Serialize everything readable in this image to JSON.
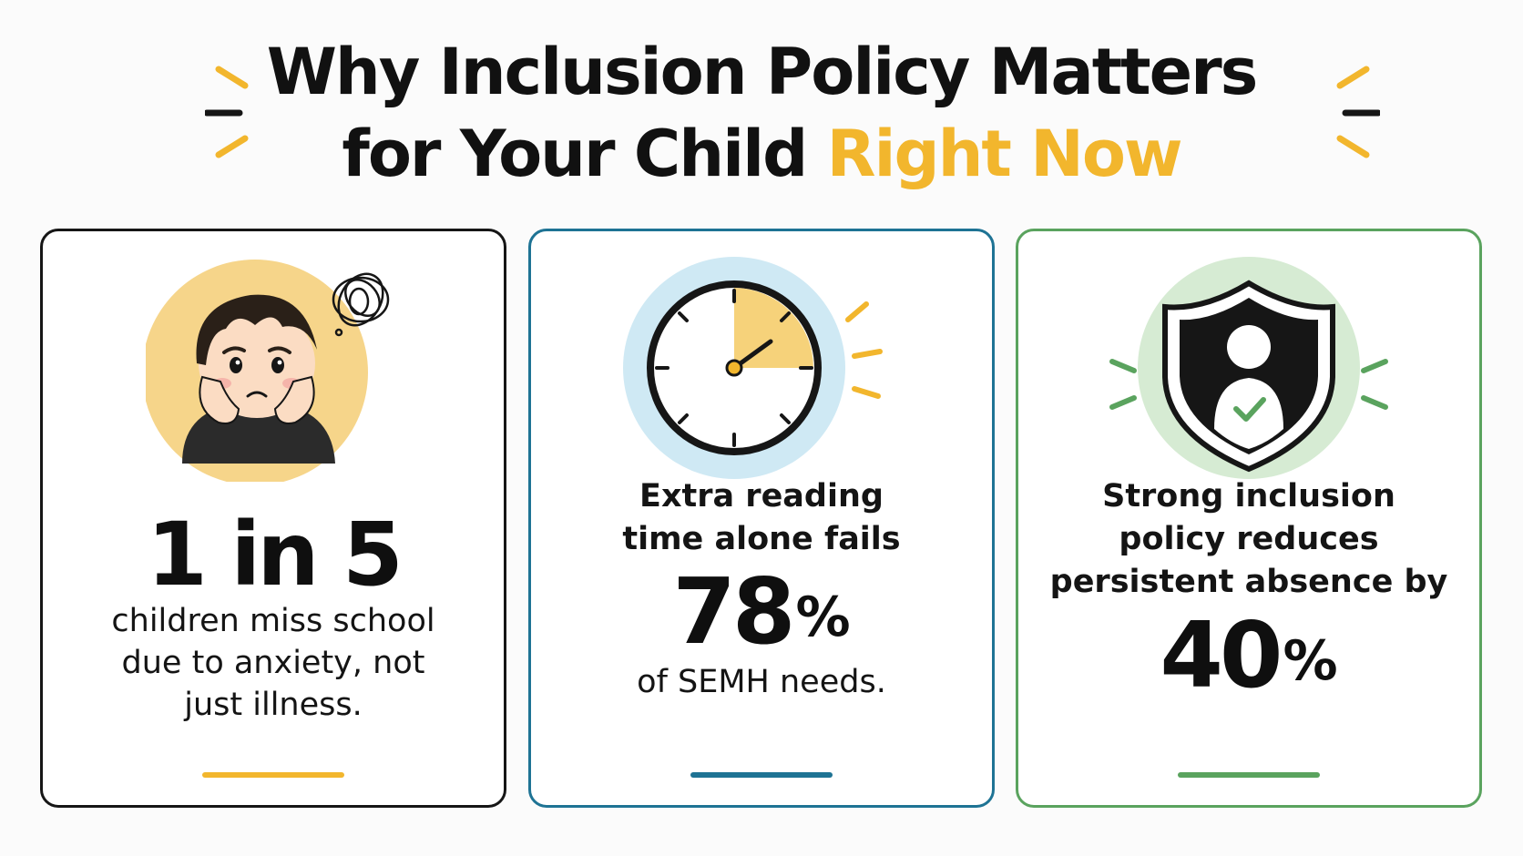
{
  "title": {
    "line1": "Why Inclusion Policy Matters",
    "line2_plain": "for Your Child ",
    "line2_highlight": "Right Now"
  },
  "colors": {
    "highlight": "#f2b62d",
    "card1_border": "#161616",
    "card2_border": "#1e7394",
    "card3_border": "#5aa35e",
    "card1_accent": "#f2b62d",
    "card2_accent": "#1e7394",
    "card3_accent": "#5aa35e"
  },
  "cards": [
    {
      "illustration": "anxious-child-icon",
      "stat": "1 in 5",
      "text_lines": [
        "children miss school",
        "due to anxiety, not",
        "just illness."
      ]
    },
    {
      "illustration": "clock-icon",
      "heading_lines": [
        "Extra reading",
        "time alone fails"
      ],
      "stat_number": "78",
      "stat_unit": "%",
      "caption": "of SEMH needs."
    },
    {
      "illustration": "shield-person-check-icon",
      "heading_lines": [
        "Strong inclusion",
        "policy reduces",
        "persistent absence by"
      ],
      "stat_number": "40",
      "stat_unit": "%"
    }
  ]
}
